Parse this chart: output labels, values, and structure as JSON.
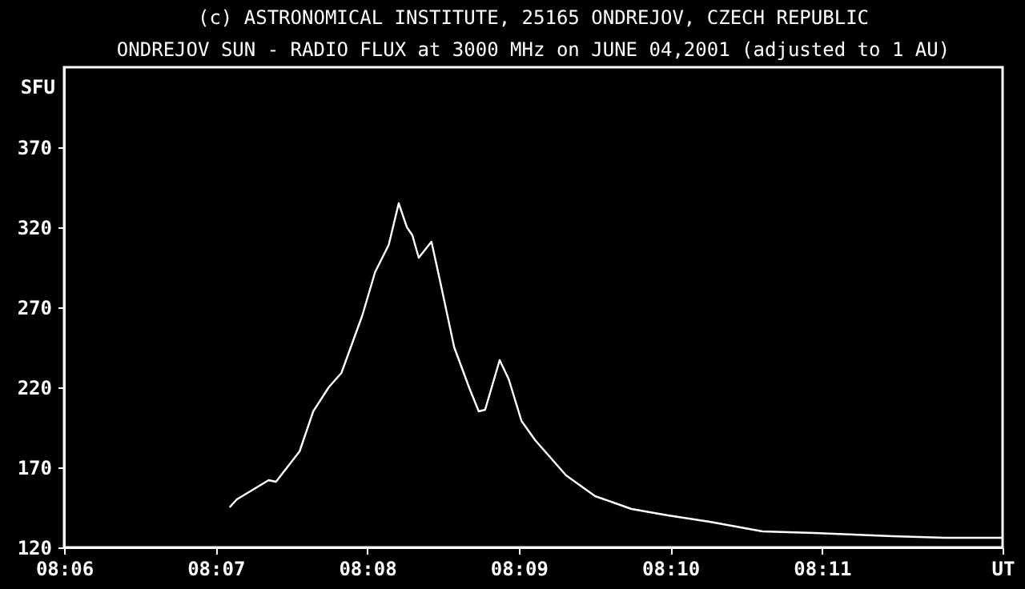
{
  "chart_data": {
    "type": "line",
    "title": "(c) ASTRONOMICAL INSTITUTE, 25165 ONDREJOV, CZECH REPUBLIC",
    "subtitle": "ONDREJOV SUN - RADIO FLUX at 3000 MHz on JUNE 04,2001 (adjusted to 1 AU)",
    "ylabel": "SFU",
    "series": [
      {
        "color": "#ffffff",
        "x": [
          8.1182,
          8.119,
          8.1225,
          8.1233,
          8.1259,
          8.1274,
          8.1291,
          8.1305,
          8.1328,
          8.1342,
          8.1357,
          8.1368,
          8.1377,
          8.1383,
          8.139,
          8.1404,
          8.1414,
          8.1429,
          8.1446,
          8.1456,
          8.1463,
          8.1479,
          8.1489,
          8.1503,
          8.1518,
          8.1552,
          8.1584,
          8.1624,
          8.1664,
          8.171,
          8.1768,
          8.1825,
          8.1911,
          8.1969,
          8.2032
        ],
        "values": [
          145,
          150,
          162,
          161,
          180,
          205,
          220,
          229,
          265,
          292,
          309,
          335,
          320,
          315,
          301,
          311,
          285,
          245,
          219,
          205,
          206,
          237,
          225,
          199,
          187,
          165,
          152,
          144,
          140,
          136,
          130,
          129,
          127,
          126,
          126
        ]
      }
    ],
    "xlim": [
      8.1,
      8.2032
    ],
    "xticks": [
      {
        "value": 8.1,
        "label": "08:06"
      },
      {
        "value": 8.116667,
        "label": "08:07"
      },
      {
        "value": 8.133333,
        "label": "08:08"
      },
      {
        "value": 8.15,
        "label": "08:09"
      },
      {
        "value": 8.166667,
        "label": "08:10"
      },
      {
        "value": 8.183333,
        "label": "08:11"
      },
      {
        "value": 8.2032,
        "label": "UT"
      }
    ],
    "ylim": [
      120,
      420
    ],
    "yticks": [
      120,
      170,
      220,
      270,
      320,
      370
    ],
    "grid": false,
    "marker": "none",
    "line_style": "solid"
  }
}
